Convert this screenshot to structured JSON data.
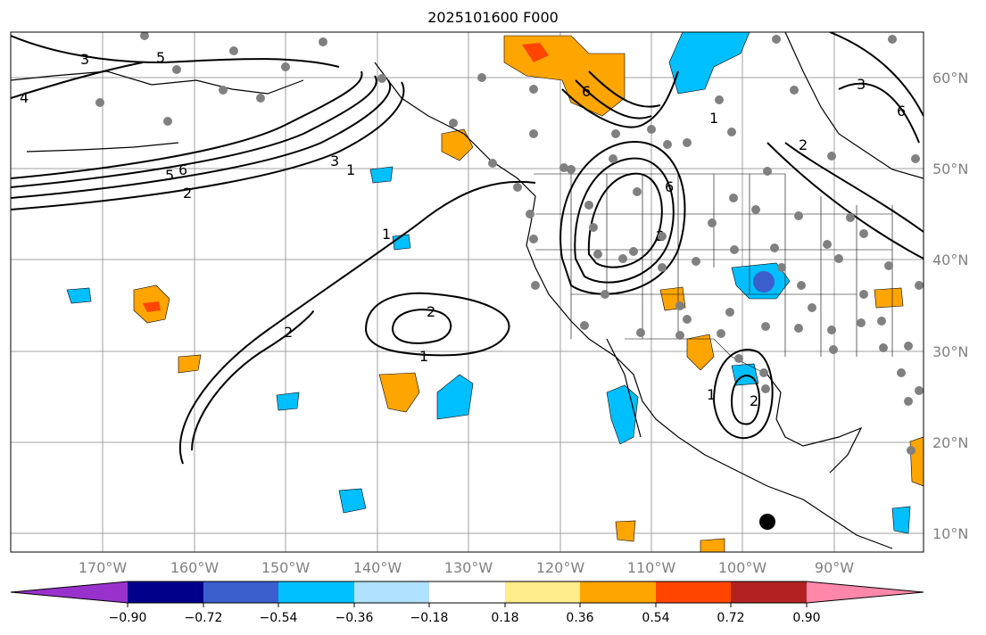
{
  "title": "2025101600 F000",
  "axes": {
    "lon_ticks": [
      "170°W",
      "160°W",
      "150°W",
      "140°W",
      "130°W",
      "120°W",
      "110°W",
      "100°W",
      "90°W"
    ],
    "lat_ticks": [
      "60°N",
      "50°N",
      "40°N",
      "30°N",
      "20°N",
      "10°N"
    ]
  },
  "colorbar": {
    "labels": [
      "−0.90",
      "−0.72",
      "−0.54",
      "−0.36",
      "−0.18",
      "0.18",
      "0.36",
      "0.54",
      "0.72",
      "0.90"
    ],
    "colors": [
      "#9932cc",
      "#00008b",
      "#3a5fcd",
      "#00bfff",
      "#b0e2ff",
      "#ffffff",
      "#ffec8b",
      "#ffa500",
      "#ff4500",
      "#b22222",
      "#ff88aa"
    ]
  },
  "contour_labels": [
    "1",
    "2",
    "3",
    "4",
    "5",
    "6"
  ],
  "colors": {
    "land_outline": "#000000",
    "grid": "#a0a0a0",
    "stations": "#808080",
    "marker": "#000000"
  }
}
